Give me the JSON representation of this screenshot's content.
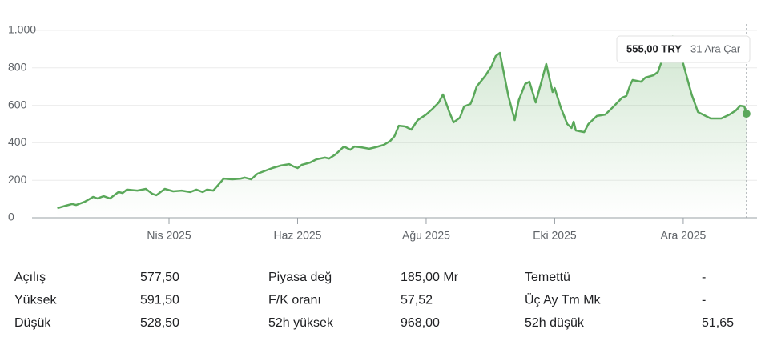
{
  "chart_data": {
    "type": "line",
    "x": [
      38,
      42,
      45,
      47,
      51,
      55,
      57,
      60,
      63,
      67,
      69,
      71,
      76,
      80,
      83,
      85,
      89,
      93,
      97,
      101,
      104,
      107,
      109,
      112,
      117,
      121,
      125,
      127,
      130,
      133,
      137,
      140,
      144,
      148,
      150,
      152,
      154,
      158,
      161,
      165,
      167,
      170,
      174,
      177,
      179,
      182,
      186,
      189,
      193,
      196,
      198,
      200,
      203,
      206,
      209,
      213,
      216,
      219,
      221,
      224,
      226,
      229,
      231,
      234,
      235,
      237,
      241,
      244,
      246,
      248,
      249,
      252,
      255,
      257,
      260,
      262,
      265,
      270,
      273,
      274,
      277,
      280,
      282,
      283,
      284,
      288,
      290,
      294,
      298,
      302,
      306,
      308,
      310,
      311,
      315,
      317,
      321,
      323,
      325,
      330,
      334,
      339,
      342,
      348,
      353,
      357,
      360,
      362,
      364,
      365
    ],
    "values": [
      51,
      64,
      73,
      68,
      85,
      111,
      103,
      115,
      103,
      137,
      132,
      150,
      145,
      154,
      128,
      120,
      154,
      141,
      145,
      137,
      150,
      137,
      150,
      145,
      209,
      205,
      209,
      214,
      205,
      235,
      252,
      265,
      278,
      286,
      274,
      265,
      282,
      295,
      312,
      321,
      316,
      338,
      380,
      363,
      380,
      376,
      368,
      376,
      389,
      410,
      436,
      491,
      487,
      470,
      521,
      551,
      581,
      615,
      658,
      564,
      509,
      534,
      594,
      607,
      632,
      701,
      756,
      808,
      863,
      880,
      821,
      650,
      521,
      628,
      714,
      726,
      615,
      821,
      671,
      692,
      585,
      500,
      479,
      513,
      466,
      457,
      500,
      543,
      551,
      594,
      641,
      650,
      714,
      735,
      726,
      748,
      761,
      778,
      842,
      968,
      863,
      658,
      564,
      530,
      530,
      551,
      573,
      598,
      594,
      555
    ],
    "color": "#5aa85a",
    "xlim": [
      26,
      370
    ],
    "xticks": [
      {
        "value": 91,
        "label": "Nis 2025"
      },
      {
        "value": 152,
        "label": "Haz 2025"
      },
      {
        "value": 213,
        "label": "Ağu 2025"
      },
      {
        "value": 274,
        "label": "Eki 2025"
      },
      {
        "value": 335,
        "label": "Ara 2025"
      }
    ],
    "ylim": [
      0,
      1000
    ],
    "yticks": [
      0,
      200,
      400,
      600,
      800,
      {
        "value": 1000,
        "label": "1.000"
      }
    ],
    "grid": true,
    "tooltip": {
      "price": "555,00 TRY",
      "date": "31 Ara Çar"
    }
  },
  "stats": [
    [
      "Açılış",
      "577,50",
      "Piyasa değ",
      "185,00 Mr",
      "Temettü",
      "-"
    ],
    [
      "Yüksek",
      "591,50",
      "F/K oranı",
      "57,52",
      "Üç Ay Tm Mk",
      "-"
    ],
    [
      "Düşük",
      "528,50",
      "52h yüksek",
      "968,00",
      "52h düşük",
      "51,65"
    ]
  ]
}
